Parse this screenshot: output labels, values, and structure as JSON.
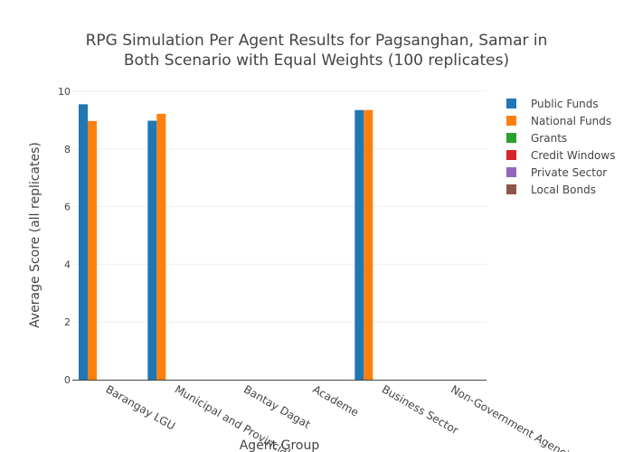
{
  "chart_data": {
    "type": "bar",
    "title_line1": "RPG Simulation Per Agent Results for Pagsanghan, Samar in",
    "title_line2": "Both Scenario with Equal Weights (100 replicates)",
    "xlabel": "Agent Group",
    "ylabel": "Average Score (all replicates)",
    "ylim": [
      0,
      10
    ],
    "yticks": [
      "0",
      "2",
      "4",
      "6",
      "8",
      "10"
    ],
    "categories": [
      "Barangay LGU",
      "Municipal and Provincial",
      "Bantay Dagat",
      "Academe",
      "Business Sector",
      "Non-Government Agencies"
    ],
    "series": [
      {
        "name": "Public Funds",
        "color": "#1f77b4",
        "values": [
          9.55,
          8.98,
          0,
          0,
          9.35,
          0
        ]
      },
      {
        "name": "National Funds",
        "color": "#ff7f0e",
        "values": [
          8.97,
          9.22,
          0,
          0,
          9.35,
          0
        ]
      },
      {
        "name": "Grants",
        "color": "#2ca02c",
        "values": [
          0,
          0,
          0,
          0,
          0,
          0
        ]
      },
      {
        "name": "Credit Windows",
        "color": "#d62728",
        "values": [
          0,
          0,
          0,
          0,
          0,
          0
        ]
      },
      {
        "name": "Private Sector",
        "color": "#9467bd",
        "values": [
          0,
          0,
          0,
          0,
          0,
          0
        ]
      },
      {
        "name": "Local Bonds",
        "color": "#8c564b",
        "values": [
          0,
          0,
          0,
          0,
          0,
          0
        ]
      }
    ],
    "grid": true,
    "legend_position": "right"
  }
}
